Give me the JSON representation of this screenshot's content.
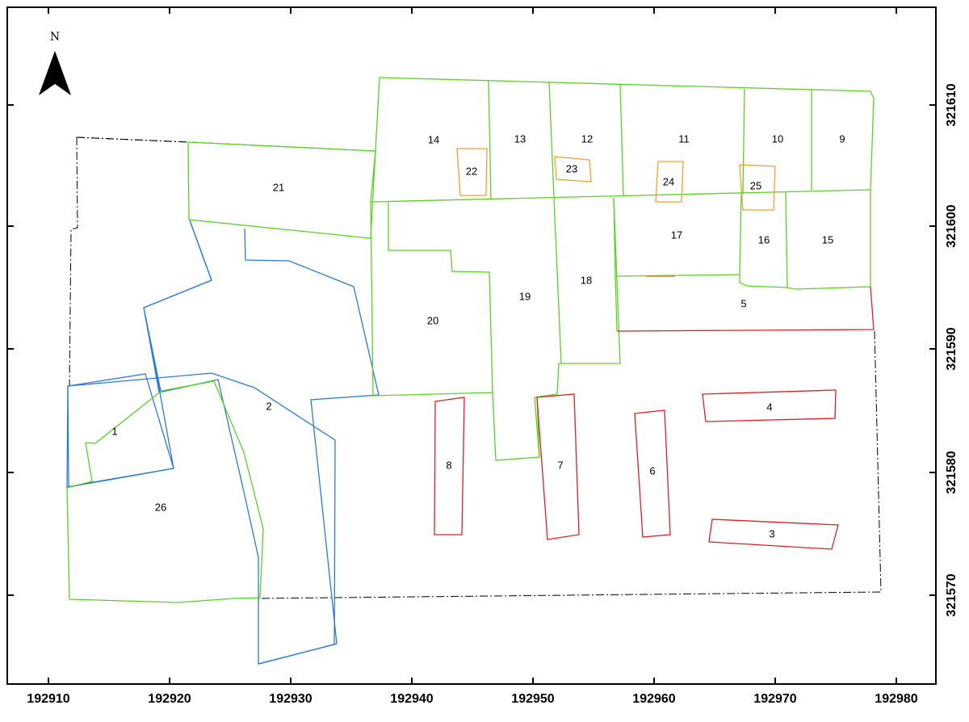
{
  "north_arrow": {
    "label": "N",
    "icon": "north-arrow-icon"
  },
  "colors": {
    "green": "#5ad225",
    "blue": "#2b7bd6",
    "red": "#e02020",
    "orange": "#f0a030",
    "boundary": "#000000"
  },
  "x_axis": {
    "ticks": [
      "192910",
      "192920",
      "192930",
      "192940",
      "192950",
      "192960",
      "192970",
      "192980"
    ]
  },
  "y_axis": {
    "ticks": [
      "321610",
      "321600",
      "321590",
      "321580",
      "321570"
    ]
  },
  "parcels": [
    {
      "id": "1",
      "label": "1"
    },
    {
      "id": "2",
      "label": "2"
    },
    {
      "id": "3",
      "label": "3"
    },
    {
      "id": "4",
      "label": "4"
    },
    {
      "id": "5",
      "label": "5"
    },
    {
      "id": "6",
      "label": "6"
    },
    {
      "id": "7",
      "label": "7"
    },
    {
      "id": "8",
      "label": "8"
    },
    {
      "id": "9",
      "label": "9"
    },
    {
      "id": "10",
      "label": "10"
    },
    {
      "id": "11",
      "label": "11"
    },
    {
      "id": "12",
      "label": "12"
    },
    {
      "id": "13",
      "label": "13"
    },
    {
      "id": "14",
      "label": "14"
    },
    {
      "id": "15",
      "label": "15"
    },
    {
      "id": "16",
      "label": "16"
    },
    {
      "id": "17",
      "label": "17"
    },
    {
      "id": "18",
      "label": "18"
    },
    {
      "id": "19",
      "label": "19"
    },
    {
      "id": "20",
      "label": "20"
    },
    {
      "id": "21",
      "label": "21"
    },
    {
      "id": "22",
      "label": "22"
    },
    {
      "id": "23",
      "label": "23"
    },
    {
      "id": "24",
      "label": "24"
    },
    {
      "id": "25",
      "label": "25"
    },
    {
      "id": "26",
      "label": "26"
    }
  ]
}
